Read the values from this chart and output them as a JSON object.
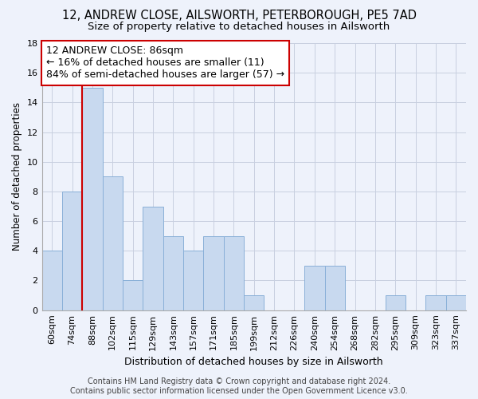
{
  "title": "12, ANDREW CLOSE, AILSWORTH, PETERBOROUGH, PE5 7AD",
  "subtitle": "Size of property relative to detached houses in Ailsworth",
  "xlabel": "Distribution of detached houses by size in Ailsworth",
  "ylabel": "Number of detached properties",
  "bar_color": "#c8d9ef",
  "bar_edgecolor": "#8ab0d8",
  "background_color": "#eef2fb",
  "grid_color": "#c8cfe0",
  "categories": [
    "60sqm",
    "74sqm",
    "88sqm",
    "102sqm",
    "115sqm",
    "129sqm",
    "143sqm",
    "157sqm",
    "171sqm",
    "185sqm",
    "199sqm",
    "212sqm",
    "226sqm",
    "240sqm",
    "254sqm",
    "268sqm",
    "282sqm",
    "295sqm",
    "309sqm",
    "323sqm",
    "337sqm"
  ],
  "values": [
    4,
    8,
    15,
    9,
    2,
    7,
    5,
    4,
    5,
    5,
    1,
    0,
    0,
    3,
    3,
    0,
    0,
    1,
    0,
    1,
    1
  ],
  "ylim": [
    0,
    18
  ],
  "yticks": [
    0,
    2,
    4,
    6,
    8,
    10,
    12,
    14,
    16,
    18
  ],
  "marker_bar_index": 2,
  "marker_color": "#cc0000",
  "annotation_line1": "12 ANDREW CLOSE: 86sqm",
  "annotation_line2": "← 16% of detached houses are smaller (11)",
  "annotation_line3": "84% of semi-detached houses are larger (57) →",
  "annotation_box_color": "#ffffff",
  "annotation_box_edgecolor": "#cc0000",
  "footer_line1": "Contains HM Land Registry data © Crown copyright and database right 2024.",
  "footer_line2": "Contains public sector information licensed under the Open Government Licence v3.0.",
  "title_fontsize": 10.5,
  "subtitle_fontsize": 9.5,
  "xlabel_fontsize": 9,
  "ylabel_fontsize": 8.5,
  "tick_fontsize": 8,
  "annotation_fontsize": 9,
  "footer_fontsize": 7
}
